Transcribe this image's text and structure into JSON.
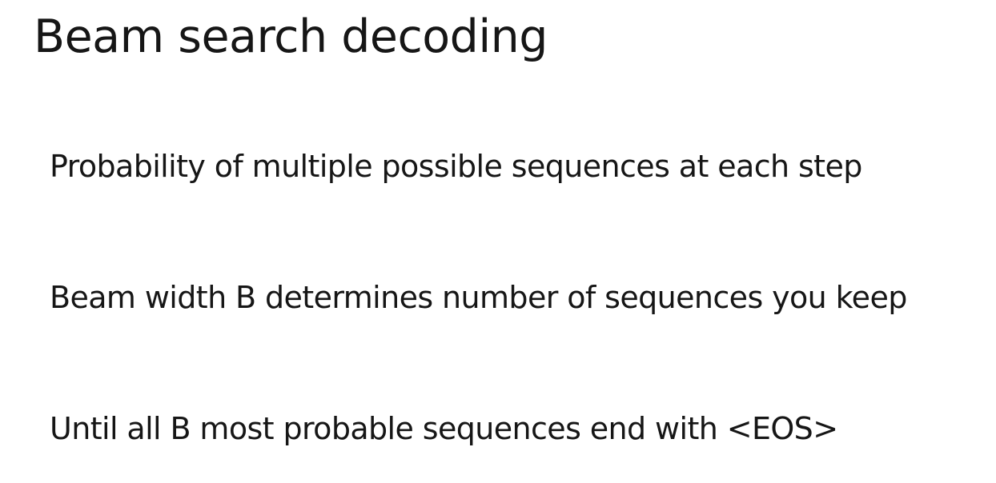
{
  "slide": {
    "title": "Beam search decoding",
    "bullets": [
      "Probability of multiple possible sequences at each step",
      "Beam width B determines number of sequences you keep",
      "Until all B most probable sequences end with <EOS>"
    ]
  }
}
